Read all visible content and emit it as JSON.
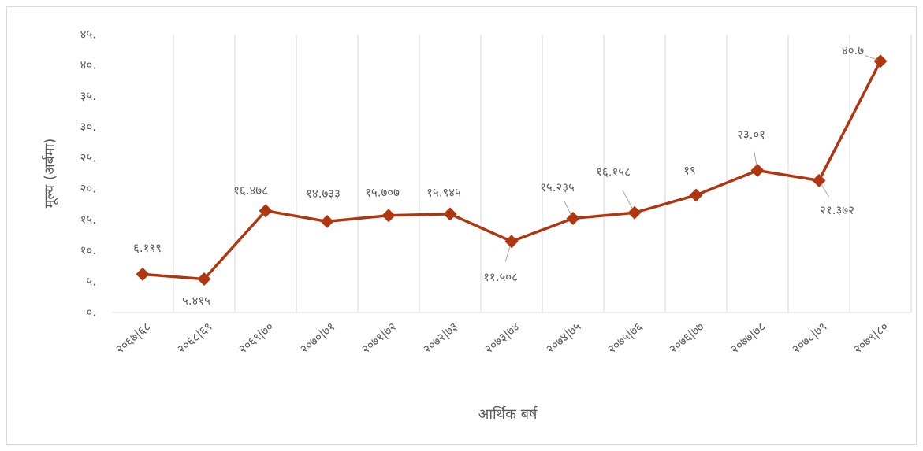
{
  "chart_data": {
    "type": "line",
    "y_axis_label": "मूल्य (अर्बमा)",
    "x_axis_label": "आर्थिक बर्ष",
    "categories": [
      "२०६७|६८",
      "२०६८|६९",
      "२०६९|७०",
      "२०७०|७१",
      "२०७१|७२",
      "२०७२|७३",
      "२०७३|७४",
      "२०७४|७५",
      "२०७५|७६",
      "२०७६|७७",
      "२०७७|७८",
      "२०७८|७९",
      "२०७९|८०"
    ],
    "values": [
      6.199,
      5.415,
      16.478,
      14.733,
      15.707,
      15.945,
      11.508,
      15.235,
      16.158,
      19,
      23.01,
      21.372,
      40.7
    ],
    "value_labels": [
      "६.१९९",
      "५.४१५",
      "१६.४७८",
      "१४.७३३",
      "१५.७०७",
      "१५.९४५",
      "११.५०८",
      "१५.२३५",
      "१६.१५८",
      "१९",
      "२३.०१",
      "२१.३७२",
      "४०.७"
    ],
    "color": "#b0360f",
    "ylim": [
      0,
      45
    ],
    "yticks": [
      {
        "value": 0,
        "label": "०."
      },
      {
        "value": 5,
        "label": "५."
      },
      {
        "value": 10,
        "label": "१०."
      },
      {
        "value": 15,
        "label": "१५."
      },
      {
        "value": 20,
        "label": "२०."
      },
      {
        "value": 25,
        "label": "२५."
      },
      {
        "value": 30,
        "label": "३०."
      },
      {
        "value": 35,
        "label": "३५."
      },
      {
        "value": 40,
        "label": "४०."
      },
      {
        "value": 45,
        "label": "४५."
      }
    ],
    "grid": true
  }
}
